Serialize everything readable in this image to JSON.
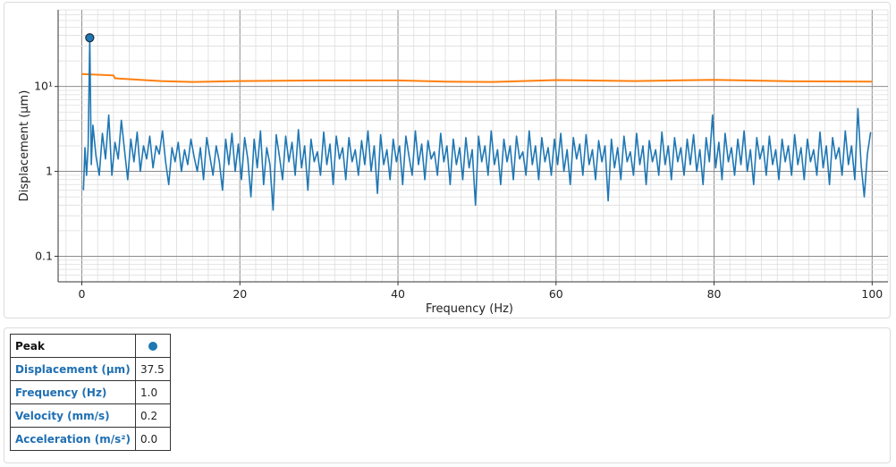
{
  "chart_data": {
    "type": "line",
    "xlabel": "Frequency (Hz)",
    "ylabel": "Displacement (µm)",
    "x_range": [
      -3,
      102
    ],
    "y_range_log": [
      0.05,
      80
    ],
    "y_scale": "log",
    "x_ticks": [
      0,
      20,
      40,
      60,
      80,
      100
    ],
    "y_ticks": [
      {
        "value": 0.1,
        "label": "0.1"
      },
      {
        "value": 1,
        "label": "1"
      },
      {
        "value": 10,
        "label": "10¹"
      }
    ],
    "grid": true,
    "colors": {
      "signal": "#1f77b4",
      "threshold": "#ff7f0e"
    },
    "threshold_series": {
      "x": [
        0,
        4,
        4.2,
        6,
        10,
        14,
        20,
        30,
        40,
        46,
        52,
        60,
        70,
        80,
        90,
        100
      ],
      "y": [
        14,
        13.5,
        12.5,
        12.2,
        11.6,
        11.3,
        11.6,
        11.8,
        11.8,
        11.4,
        11.3,
        11.9,
        11.6,
        12,
        11.5,
        11.4
      ]
    },
    "signal_series": {
      "peak": {
        "x": 1.0,
        "y": 37.5
      },
      "points": [
        [
          0.2,
          0.6
        ],
        [
          0.4,
          1.9
        ],
        [
          0.6,
          0.9
        ],
        [
          0.8,
          2.0
        ],
        [
          1.0,
          37.5
        ],
        [
          1.2,
          1.2
        ],
        [
          1.4,
          3.5
        ],
        [
          1.8,
          1.5
        ],
        [
          2.2,
          0.9
        ],
        [
          2.6,
          2.8
        ],
        [
          3.0,
          1.4
        ],
        [
          3.4,
          4.6
        ],
        [
          3.8,
          0.9
        ],
        [
          4.2,
          2.2
        ],
        [
          4.6,
          1.4
        ],
        [
          5.0,
          4.0
        ],
        [
          5.4,
          1.8
        ],
        [
          5.8,
          0.8
        ],
        [
          6.2,
          2.4
        ],
        [
          6.6,
          1.3
        ],
        [
          7.0,
          2.9
        ],
        [
          7.4,
          1.0
        ],
        [
          7.8,
          2.0
        ],
        [
          8.2,
          1.4
        ],
        [
          8.6,
          2.6
        ],
        [
          9.0,
          1.1
        ],
        [
          9.4,
          2.0
        ],
        [
          9.8,
          1.6
        ],
        [
          10.2,
          3.0
        ],
        [
          10.6,
          1.3
        ],
        [
          11,
          0.7
        ],
        [
          11.4,
          1.9
        ],
        [
          11.8,
          1.3
        ],
        [
          12.2,
          2.2
        ],
        [
          12.6,
          1.0
        ],
        [
          13,
          1.8
        ],
        [
          13.4,
          1.2
        ],
        [
          13.8,
          2.4
        ],
        [
          14.2,
          1.5
        ],
        [
          14.6,
          1.0
        ],
        [
          15,
          1.9
        ],
        [
          15.4,
          0.8
        ],
        [
          15.8,
          2.5
        ],
        [
          16.2,
          1.5
        ],
        [
          16.6,
          0.9
        ],
        [
          17,
          2.0
        ],
        [
          17.4,
          1.3
        ],
        [
          17.8,
          0.6
        ],
        [
          18.2,
          2.4
        ],
        [
          18.6,
          1.2
        ],
        [
          19,
          2.8
        ],
        [
          19.4,
          1.0
        ],
        [
          19.8,
          2.1
        ],
        [
          20.2,
          0.8
        ],
        [
          20.6,
          2.5
        ],
        [
          21,
          1.4
        ],
        [
          21.4,
          0.5
        ],
        [
          21.8,
          2.4
        ],
        [
          22.2,
          1.1
        ],
        [
          22.6,
          3.0
        ],
        [
          23,
          0.7
        ],
        [
          23.4,
          1.9
        ],
        [
          23.8,
          1.2
        ],
        [
          24.2,
          0.35
        ],
        [
          24.6,
          2.7
        ],
        [
          25,
          1.5
        ],
        [
          25.4,
          0.8
        ],
        [
          25.8,
          2.6
        ],
        [
          26.2,
          1.3
        ],
        [
          26.6,
          2.2
        ],
        [
          27,
          0.9
        ],
        [
          27.4,
          3.1
        ],
        [
          27.8,
          1.1
        ],
        [
          28.2,
          2.0
        ],
        [
          28.6,
          0.6
        ],
        [
          29,
          2.4
        ],
        [
          29.4,
          1.3
        ],
        [
          29.8,
          1.7
        ],
        [
          30.2,
          0.9
        ],
        [
          30.6,
          2.9
        ],
        [
          31,
          1.2
        ],
        [
          31.4,
          2.1
        ],
        [
          31.8,
          0.7
        ],
        [
          32.2,
          2.6
        ],
        [
          32.6,
          1.4
        ],
        [
          33,
          1.9
        ],
        [
          33.4,
          0.8
        ],
        [
          33.8,
          2.5
        ],
        [
          34.2,
          1.3
        ],
        [
          34.6,
          1.8
        ],
        [
          35,
          0.9
        ],
        [
          35.4,
          2.3
        ],
        [
          35.8,
          1.2
        ],
        [
          36.2,
          3.0
        ],
        [
          36.6,
          1.0
        ],
        [
          37,
          2.0
        ],
        [
          37.4,
          0.55
        ],
        [
          37.8,
          2.7
        ],
        [
          38.2,
          1.2
        ],
        [
          38.6,
          1.8
        ],
        [
          39,
          0.8
        ],
        [
          39.4,
          2.4
        ],
        [
          39.8,
          1.3
        ],
        [
          40.2,
          2.0
        ],
        [
          40.6,
          0.7
        ],
        [
          41,
          2.6
        ],
        [
          41.4,
          1.5
        ],
        [
          41.8,
          0.9
        ],
        [
          42.2,
          3.0
        ],
        [
          42.6,
          1.2
        ],
        [
          43,
          2.1
        ],
        [
          43.4,
          0.8
        ],
        [
          43.8,
          2.3
        ],
        [
          44.2,
          1.4
        ],
        [
          44.6,
          1.7
        ],
        [
          45,
          0.9
        ],
        [
          45.4,
          2.8
        ],
        [
          45.8,
          1.3
        ],
        [
          46.2,
          2.0
        ],
        [
          46.6,
          0.7
        ],
        [
          47,
          2.4
        ],
        [
          47.4,
          1.2
        ],
        [
          47.8,
          1.9
        ],
        [
          48.2,
          0.8
        ],
        [
          48.6,
          2.5
        ],
        [
          49,
          1.1
        ],
        [
          49.4,
          1.8
        ],
        [
          49.8,
          0.4
        ],
        [
          50.2,
          2.6
        ],
        [
          50.6,
          1.3
        ],
        [
          51,
          2.0
        ],
        [
          51.4,
          0.9
        ],
        [
          51.8,
          3.0
        ],
        [
          52.2,
          1.2
        ],
        [
          52.6,
          1.8
        ],
        [
          53,
          0.7
        ],
        [
          53.4,
          2.4
        ],
        [
          53.8,
          1.3
        ],
        [
          54.2,
          2.0
        ],
        [
          54.6,
          0.8
        ],
        [
          55,
          2.6
        ],
        [
          55.4,
          1.4
        ],
        [
          55.8,
          1.7
        ],
        [
          56.2,
          0.9
        ],
        [
          56.6,
          3.0
        ],
        [
          57,
          1.2
        ],
        [
          57.4,
          2.0
        ],
        [
          57.8,
          0.8
        ],
        [
          58.2,
          2.5
        ],
        [
          58.6,
          1.3
        ],
        [
          59,
          1.9
        ],
        [
          59.4,
          0.9
        ],
        [
          59.8,
          2.4
        ],
        [
          60.2,
          1.2
        ],
        [
          60.6,
          2.8
        ],
        [
          61,
          1.0
        ],
        [
          61.4,
          1.8
        ],
        [
          61.8,
          0.7
        ],
        [
          62.2,
          2.5
        ],
        [
          62.6,
          1.4
        ],
        [
          63,
          2.1
        ],
        [
          63.4,
          0.9
        ],
        [
          63.8,
          2.7
        ],
        [
          64.2,
          1.2
        ],
        [
          64.6,
          1.8
        ],
        [
          65,
          0.8
        ],
        [
          65.4,
          2.3
        ],
        [
          65.8,
          1.3
        ],
        [
          66.2,
          2.0
        ],
        [
          66.6,
          0.45
        ],
        [
          67,
          2.4
        ],
        [
          67.4,
          1.1
        ],
        [
          67.8,
          1.9
        ],
        [
          68.2,
          0.8
        ],
        [
          68.6,
          2.6
        ],
        [
          69,
          1.3
        ],
        [
          69.4,
          1.7
        ],
        [
          69.8,
          0.9
        ],
        [
          70.2,
          2.8
        ],
        [
          70.6,
          1.2
        ],
        [
          71,
          2.0
        ],
        [
          71.4,
          0.7
        ],
        [
          71.8,
          2.3
        ],
        [
          72.2,
          1.3
        ],
        [
          72.6,
          1.8
        ],
        [
          73,
          0.9
        ],
        [
          73.4,
          2.9
        ],
        [
          73.8,
          1.2
        ],
        [
          74.2,
          2.0
        ],
        [
          74.6,
          0.8
        ],
        [
          75,
          2.5
        ],
        [
          75.4,
          1.3
        ],
        [
          75.8,
          1.9
        ],
        [
          76.2,
          0.9
        ],
        [
          76.6,
          2.4
        ],
        [
          77,
          1.2
        ],
        [
          77.4,
          2.7
        ],
        [
          77.8,
          1.0
        ],
        [
          78.2,
          1.8
        ],
        [
          78.6,
          0.7
        ],
        [
          79,
          2.5
        ],
        [
          79.4,
          1.3
        ],
        [
          79.8,
          4.6
        ],
        [
          80.2,
          1.1
        ],
        [
          80.6,
          2.2
        ],
        [
          81,
          0.8
        ],
        [
          81.4,
          2.8
        ],
        [
          81.8,
          1.3
        ],
        [
          82.2,
          1.9
        ],
        [
          82.6,
          0.9
        ],
        [
          83,
          2.4
        ],
        [
          83.4,
          1.2
        ],
        [
          83.8,
          3.0
        ],
        [
          84.2,
          1.0
        ],
        [
          84.6,
          1.8
        ],
        [
          85,
          0.7
        ],
        [
          85.4,
          2.5
        ],
        [
          85.8,
          1.4
        ],
        [
          86.2,
          2.0
        ],
        [
          86.6,
          0.9
        ],
        [
          87,
          2.6
        ],
        [
          87.4,
          1.2
        ],
        [
          87.8,
          1.8
        ],
        [
          88.2,
          0.8
        ],
        [
          88.6,
          2.4
        ],
        [
          89,
          1.3
        ],
        [
          89.4,
          2.0
        ],
        [
          89.8,
          0.9
        ],
        [
          90.2,
          2.7
        ],
        [
          90.6,
          1.2
        ],
        [
          91,
          1.9
        ],
        [
          91.4,
          0.8
        ],
        [
          91.8,
          2.4
        ],
        [
          92.2,
          1.3
        ],
        [
          92.6,
          1.8
        ],
        [
          93,
          0.9
        ],
        [
          93.4,
          2.9
        ],
        [
          93.8,
          1.1
        ],
        [
          94.2,
          2.0
        ],
        [
          94.6,
          0.7
        ],
        [
          95,
          2.5
        ],
        [
          95.4,
          1.4
        ],
        [
          95.8,
          1.9
        ],
        [
          96.2,
          0.9
        ],
        [
          96.6,
          3.0
        ],
        [
          97,
          1.2
        ],
        [
          97.4,
          2.0
        ],
        [
          97.8,
          0.8
        ],
        [
          98.2,
          5.5
        ],
        [
          98.6,
          1.2
        ],
        [
          99,
          0.5
        ],
        [
          99.4,
          1.6
        ],
        [
          99.8,
          2.9
        ]
      ]
    }
  },
  "peak_table": {
    "header": "Peak",
    "rows": [
      {
        "label": "Displacement (µm)",
        "value": "37.5"
      },
      {
        "label": "Frequency (Hz)",
        "value": "1.0"
      },
      {
        "label": "Velocity (mm/s)",
        "value": "0.2"
      },
      {
        "label": "Acceleration (m/s²)",
        "value": "0.0"
      }
    ]
  }
}
